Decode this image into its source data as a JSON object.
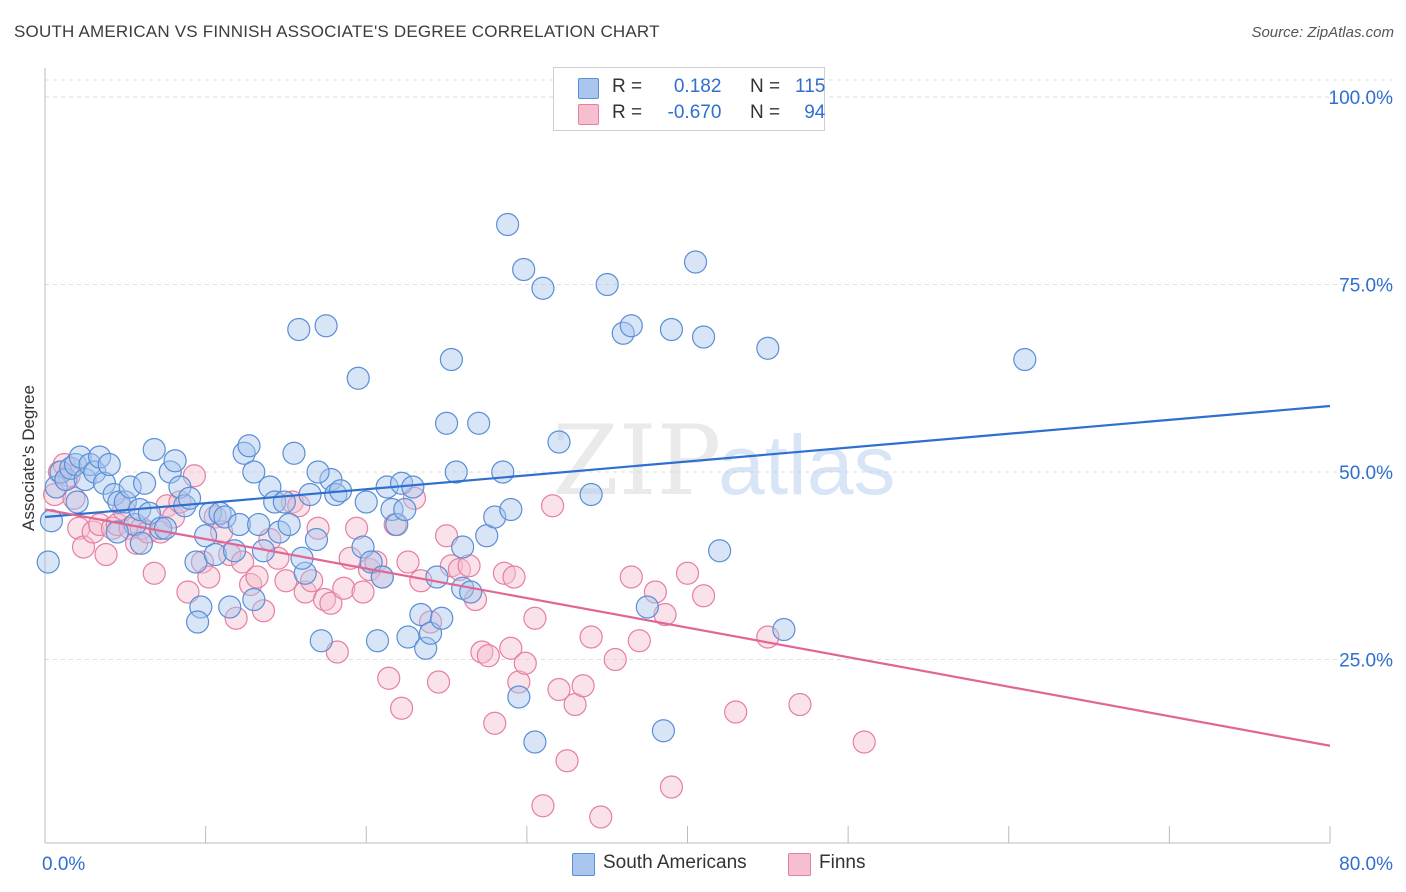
{
  "title": "SOUTH AMERICAN VS FINNISH ASSOCIATE'S DEGREE CORRELATION CHART",
  "source": "Source: ZipAtlas.com",
  "watermark": {
    "zip": "ZIP",
    "atlas": "atlas"
  },
  "legend": {
    "rows": [
      {
        "r_label": "R =",
        "r_value": "0.182",
        "n_label": "N =",
        "n_value": "115"
      },
      {
        "r_label": "R =",
        "r_value": "-0.670",
        "n_label": "N =",
        "n_value": "94"
      }
    ]
  },
  "bottom_legend": {
    "series1": "South Americans",
    "series2": "Finns"
  },
  "colors": {
    "blue_fill": "#a9c6ee",
    "blue_stroke": "#5b8fd6",
    "blue_line": "#2f6fd0",
    "pink_fill": "#f5bfd0",
    "pink_stroke": "#e77fa1",
    "pink_line": "#e06694",
    "axis_label": "#2f6fd0",
    "grid": "#dddddd"
  },
  "chart_data": {
    "type": "scatter",
    "ylabel": "Associate's Degree",
    "xlim": [
      0,
      80
    ],
    "ylim": [
      0,
      100
    ],
    "x_tick_labels": [
      "0.0%",
      "80.0%"
    ],
    "y_tick_labels": [
      "100.0%",
      "75.0%",
      "50.0%",
      "25.0%"
    ],
    "y_tick_values": [
      100,
      75,
      50,
      25
    ],
    "grid": true,
    "legend_position": "top-center",
    "series": [
      {
        "name": "South Americans",
        "r": 0.182,
        "n": 115,
        "trend": {
          "x": [
            0,
            80
          ],
          "y": [
            44.0,
            58.8
          ]
        },
        "points": [
          [
            0.2,
            38
          ],
          [
            0.4,
            43.5
          ],
          [
            0.7,
            48
          ],
          [
            1.0,
            50
          ],
          [
            1.3,
            49
          ],
          [
            1.6,
            50.5
          ],
          [
            1.9,
            51
          ],
          [
            2.2,
            52
          ],
          [
            2.5,
            49
          ],
          [
            2.8,
            51
          ],
          [
            3.1,
            50
          ],
          [
            3.4,
            52
          ],
          [
            3.7,
            48.5
          ],
          [
            4.0,
            51
          ],
          [
            4.3,
            47
          ],
          [
            4.6,
            46
          ],
          [
            5.0,
            46
          ],
          [
            5.3,
            48
          ],
          [
            5.6,
            43
          ],
          [
            5.9,
            45
          ],
          [
            6.2,
            48.5
          ],
          [
            6.5,
            44.5
          ],
          [
            6.8,
            53
          ],
          [
            7.2,
            42.5
          ],
          [
            7.5,
            42.5
          ],
          [
            7.8,
            50
          ],
          [
            8.1,
            51.5
          ],
          [
            8.4,
            48
          ],
          [
            8.7,
            45.5
          ],
          [
            9.0,
            46.5
          ],
          [
            9.4,
            38
          ],
          [
            9.7,
            32
          ],
          [
            10.0,
            41.5
          ],
          [
            10.3,
            44.5
          ],
          [
            10.6,
            39
          ],
          [
            10.9,
            44.5
          ],
          [
            11.2,
            44
          ],
          [
            11.5,
            32
          ],
          [
            11.8,
            39.5
          ],
          [
            12.1,
            43
          ],
          [
            12.4,
            52.5
          ],
          [
            12.7,
            53.5
          ],
          [
            13.0,
            50
          ],
          [
            13.3,
            43
          ],
          [
            13.6,
            39.5
          ],
          [
            14.0,
            48
          ],
          [
            14.3,
            46
          ],
          [
            14.6,
            42
          ],
          [
            14.9,
            46
          ],
          [
            15.2,
            43
          ],
          [
            15.5,
            52.5
          ],
          [
            15.8,
            69
          ],
          [
            16.2,
            36.5
          ],
          [
            16.5,
            47
          ],
          [
            16.9,
            41
          ],
          [
            17.2,
            27.5
          ],
          [
            17.5,
            69.5
          ],
          [
            17.8,
            49
          ],
          [
            18.1,
            47
          ],
          [
            18.4,
            47.5
          ],
          [
            19.5,
            62.5
          ],
          [
            20.0,
            46
          ],
          [
            19.8,
            40
          ],
          [
            20.3,
            38
          ],
          [
            20.7,
            27.5
          ],
          [
            21.0,
            36
          ],
          [
            21.3,
            48
          ],
          [
            21.6,
            45
          ],
          [
            21.9,
            43
          ],
          [
            22.2,
            48.5
          ],
          [
            22.4,
            45
          ],
          [
            22.6,
            28
          ],
          [
            22.9,
            48
          ],
          [
            23.4,
            31
          ],
          [
            23.7,
            26.5
          ],
          [
            24.0,
            28.5
          ],
          [
            24.4,
            36
          ],
          [
            24.7,
            30.5
          ],
          [
            25.0,
            56.5
          ],
          [
            25.3,
            65
          ],
          [
            25.6,
            50
          ],
          [
            26.0,
            34.5
          ],
          [
            26.5,
            34
          ],
          [
            27.0,
            56.5
          ],
          [
            27.5,
            41.5
          ],
          [
            28.0,
            44
          ],
          [
            28.5,
            50
          ],
          [
            28.8,
            83
          ],
          [
            29.5,
            20
          ],
          [
            29.8,
            77
          ],
          [
            30.5,
            14
          ],
          [
            31.0,
            74.5
          ],
          [
            32.0,
            54
          ],
          [
            34.0,
            47
          ],
          [
            35.0,
            75
          ],
          [
            36.0,
            68.5
          ],
          [
            36.5,
            69.5
          ],
          [
            37.5,
            32
          ],
          [
            38.5,
            15.5
          ],
          [
            39.0,
            69
          ],
          [
            40.5,
            78
          ],
          [
            41.0,
            68
          ],
          [
            42.0,
            39.5
          ],
          [
            45.0,
            66.5
          ],
          [
            46.0,
            29
          ],
          [
            61.0,
            65
          ],
          [
            16.0,
            38.5
          ],
          [
            13.0,
            33
          ],
          [
            9.5,
            30
          ],
          [
            6.0,
            40.5
          ],
          [
            4.5,
            42
          ],
          [
            2.0,
            46
          ],
          [
            17.0,
            50
          ],
          [
            26.0,
            40
          ],
          [
            29.0,
            45
          ]
        ]
      },
      {
        "name": "Finns",
        "r": -0.67,
        "n": 94,
        "trend": {
          "x": [
            0,
            80
          ],
          "y": [
            45.0,
            13.5
          ]
        },
        "points": [
          [
            0.6,
            47
          ],
          [
            0.9,
            50
          ],
          [
            1.2,
            51
          ],
          [
            1.5,
            49.5
          ],
          [
            1.8,
            46.5
          ],
          [
            2.1,
            42.5
          ],
          [
            2.4,
            40
          ],
          [
            3.0,
            42
          ],
          [
            3.4,
            43
          ],
          [
            3.8,
            39
          ],
          [
            4.2,
            42.5
          ],
          [
            4.5,
            43
          ],
          [
            4.9,
            45
          ],
          [
            5.3,
            42.5
          ],
          [
            5.7,
            40.5
          ],
          [
            6.0,
            42.5
          ],
          [
            6.4,
            42
          ],
          [
            6.8,
            36.5
          ],
          [
            7.2,
            42
          ],
          [
            7.6,
            45.5
          ],
          [
            8.0,
            44
          ],
          [
            8.4,
            46
          ],
          [
            8.9,
            34
          ],
          [
            9.3,
            49.5
          ],
          [
            9.8,
            38
          ],
          [
            10.2,
            36
          ],
          [
            10.6,
            44
          ],
          [
            11.0,
            42
          ],
          [
            11.5,
            39
          ],
          [
            11.9,
            30.5
          ],
          [
            12.3,
            38
          ],
          [
            12.8,
            35
          ],
          [
            13.2,
            36
          ],
          [
            13.6,
            31.5
          ],
          [
            14.0,
            41
          ],
          [
            14.5,
            38.5
          ],
          [
            15.0,
            35.5
          ],
          [
            15.4,
            46
          ],
          [
            15.8,
            45.5
          ],
          [
            16.2,
            34
          ],
          [
            16.6,
            35.5
          ],
          [
            17.0,
            42.5
          ],
          [
            17.4,
            33
          ],
          [
            17.8,
            32.5
          ],
          [
            18.2,
            26
          ],
          [
            18.6,
            34.5
          ],
          [
            19.0,
            38.5
          ],
          [
            19.4,
            42.5
          ],
          [
            19.8,
            34
          ],
          [
            20.2,
            37
          ],
          [
            20.6,
            38
          ],
          [
            21.0,
            36
          ],
          [
            21.4,
            22.5
          ],
          [
            21.8,
            43
          ],
          [
            22.2,
            18.5
          ],
          [
            22.6,
            38
          ],
          [
            23.0,
            46.5
          ],
          [
            23.4,
            35.5
          ],
          [
            24.0,
            30
          ],
          [
            24.5,
            22
          ],
          [
            25.0,
            41.5
          ],
          [
            25.3,
            37.5
          ],
          [
            25.8,
            37
          ],
          [
            26.4,
            37.5
          ],
          [
            26.8,
            33
          ],
          [
            27.2,
            26
          ],
          [
            27.6,
            25.5
          ],
          [
            28.0,
            16.5
          ],
          [
            28.6,
            36.5
          ],
          [
            29.0,
            26.5
          ],
          [
            29.5,
            22
          ],
          [
            29.9,
            24.5
          ],
          [
            30.5,
            30.5
          ],
          [
            31.0,
            5.5
          ],
          [
            31.6,
            45.5
          ],
          [
            32.0,
            21
          ],
          [
            32.5,
            11.5
          ],
          [
            33.0,
            19
          ],
          [
            33.5,
            21.5
          ],
          [
            34.0,
            28
          ],
          [
            34.6,
            4
          ],
          [
            35.5,
            25
          ],
          [
            36.5,
            36
          ],
          [
            37.0,
            27.5
          ],
          [
            38.0,
            34
          ],
          [
            38.6,
            31
          ],
          [
            39.0,
            8
          ],
          [
            40.0,
            36.5
          ],
          [
            41.0,
            33.5
          ],
          [
            43.0,
            18
          ],
          [
            45.0,
            28
          ],
          [
            47.0,
            19
          ],
          [
            51.0,
            14
          ],
          [
            29.2,
            36
          ]
        ]
      }
    ]
  }
}
